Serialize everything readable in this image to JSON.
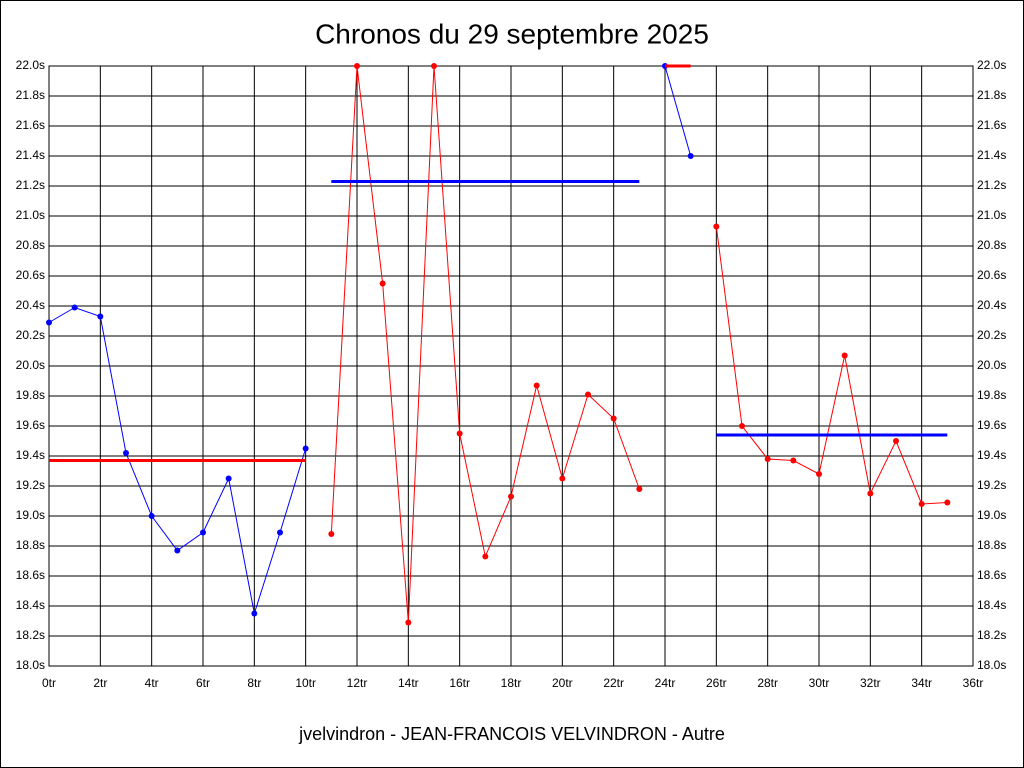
{
  "chart_data": {
    "type": "line",
    "title": "Chronos du 29 septembre 2025",
    "xlabel": "jvelvindron - JEAN-FRANCOIS VELVINDRON - Autre",
    "xlim": [
      0,
      36
    ],
    "ylim": [
      18,
      22
    ],
    "xticks": [
      {
        "value": 0,
        "label": "0tr"
      },
      {
        "value": 2,
        "label": "2tr"
      },
      {
        "value": 4,
        "label": "4tr"
      },
      {
        "value": 6,
        "label": "6tr"
      },
      {
        "value": 8,
        "label": "8tr"
      },
      {
        "value": 10,
        "label": "10tr"
      },
      {
        "value": 12,
        "label": "12tr"
      },
      {
        "value": 14,
        "label": "14tr"
      },
      {
        "value": 16,
        "label": "16tr"
      },
      {
        "value": 18,
        "label": "18tr"
      },
      {
        "value": 20,
        "label": "20tr"
      },
      {
        "value": 22,
        "label": "22tr"
      },
      {
        "value": 24,
        "label": "24tr"
      },
      {
        "value": 26,
        "label": "26tr"
      },
      {
        "value": 28,
        "label": "28tr"
      },
      {
        "value": 30,
        "label": "30tr"
      },
      {
        "value": 32,
        "label": "32tr"
      },
      {
        "value": 34,
        "label": "34tr"
      },
      {
        "value": 36,
        "label": "36tr"
      }
    ],
    "yticks": [
      {
        "value": 18,
        "label": "18.0s"
      },
      {
        "value": 18.2,
        "label": "18.2s"
      },
      {
        "value": 18.4,
        "label": "18.4s"
      },
      {
        "value": 18.6,
        "label": "18.6s"
      },
      {
        "value": 18.8,
        "label": "18.8s"
      },
      {
        "value": 19,
        "label": "19.0s"
      },
      {
        "value": 19.2,
        "label": "19.2s"
      },
      {
        "value": 19.4,
        "label": "19.4s"
      },
      {
        "value": 19.6,
        "label": "19.6s"
      },
      {
        "value": 19.8,
        "label": "19.8s"
      },
      {
        "value": 20,
        "label": "20.0s"
      },
      {
        "value": 20.2,
        "label": "20.2s"
      },
      {
        "value": 20.4,
        "label": "20.4s"
      },
      {
        "value": 20.6,
        "label": "20.6s"
      },
      {
        "value": 20.8,
        "label": "20.8s"
      },
      {
        "value": 21,
        "label": "21.0s"
      },
      {
        "value": 21.2,
        "label": "21.2s"
      },
      {
        "value": 21.4,
        "label": "21.4s"
      },
      {
        "value": 21.6,
        "label": "21.6s"
      },
      {
        "value": 21.8,
        "label": "21.8s"
      },
      {
        "value": 22,
        "label": "22.0s"
      }
    ],
    "grid": true,
    "series": [
      {
        "color": "#0000ff",
        "markers": true,
        "width": 1,
        "x": [
          0,
          1,
          2,
          3,
          4,
          5,
          6,
          7,
          8,
          9,
          10
        ],
        "values": [
          20.29,
          20.39,
          20.33,
          19.42,
          19.0,
          18.77,
          18.89,
          19.25,
          18.35,
          18.89,
          19.45
        ]
      },
      {
        "color": "#ff0000",
        "markers": true,
        "width": 1,
        "x": [
          11,
          12,
          13,
          14,
          15,
          16,
          17,
          18,
          19,
          20,
          21,
          22,
          23
        ],
        "values": [
          18.88,
          22.0,
          20.55,
          18.29,
          22.0,
          19.55,
          18.73,
          19.13,
          19.87,
          19.25,
          19.81,
          19.65,
          19.18
        ]
      },
      {
        "color": "#0000ff",
        "markers": true,
        "width": 1,
        "x": [
          24,
          25
        ],
        "values": [
          22.0,
          21.4
        ]
      },
      {
        "color": "#ff0000",
        "markers": true,
        "width": 1,
        "x": [
          26,
          27,
          28,
          29,
          30,
          31,
          32,
          33,
          34,
          35
        ],
        "values": [
          20.93,
          19.6,
          19.38,
          19.37,
          19.28,
          20.07,
          19.15,
          19.5,
          19.08,
          19.09
        ]
      },
      {
        "color": "#ff0000",
        "markers": false,
        "width": 3,
        "x": [
          0,
          10
        ],
        "values": [
          19.37,
          19.37
        ]
      },
      {
        "color": "#0000ff",
        "markers": false,
        "width": 3,
        "x": [
          11,
          23
        ],
        "values": [
          21.23,
          21.23
        ]
      },
      {
        "color": "#ff0000",
        "markers": false,
        "width": 3,
        "x": [
          24,
          25
        ],
        "values": [
          22.0,
          22.0
        ]
      },
      {
        "color": "#0000ff",
        "markers": false,
        "width": 3,
        "x": [
          26,
          35
        ],
        "values": [
          19.54,
          19.54
        ]
      }
    ]
  }
}
